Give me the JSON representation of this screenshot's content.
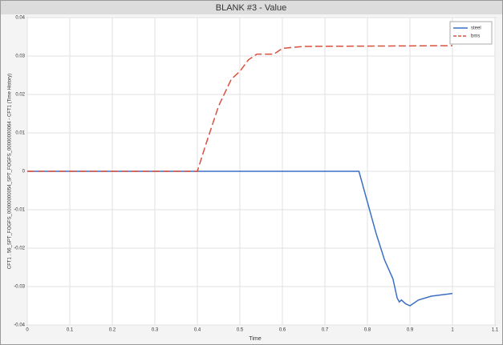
{
  "chart_data": {
    "type": "line",
    "title": "BLANK #3 - Value",
    "xlabel": "Time",
    "ylabel": "CFT1 . 56_SPT_FOGFS_00000000054_SPT_FOGFS_00000000064 - CFT1 (Time History)",
    "xlim": [
      0,
      1.1
    ],
    "xticks": [
      0,
      0.1,
      0.2,
      0.3,
      0.4,
      0.5,
      0.6,
      0.7,
      0.8,
      0.9,
      1,
      1.1
    ],
    "ylim": [
      -0.04,
      0.04
    ],
    "yticks": [
      -0.04,
      -0.03,
      -0.02,
      -0.01,
      0,
      0.01,
      0.02,
      0.03,
      0.04
    ],
    "grid": true,
    "legend": "upper right",
    "series": [
      {
        "name": "steel",
        "color": "#3a6fc4",
        "line_style": "solid",
        "x": [
          0,
          0.78,
          0.8,
          0.82,
          0.84,
          0.86,
          0.87,
          0.875,
          0.88,
          0.89,
          0.9,
          0.92,
          0.95,
          1.0
        ],
        "values": [
          0,
          0,
          -0.008,
          -0.016,
          -0.023,
          -0.028,
          -0.033,
          -0.034,
          -0.0335,
          -0.0345,
          -0.035,
          -0.0335,
          -0.0325,
          -0.0318
        ]
      },
      {
        "name": "bms",
        "color": "#d9503f",
        "line_style": "dashed",
        "x": [
          0,
          0.4,
          0.42,
          0.45,
          0.48,
          0.5,
          0.52,
          0.54,
          0.58,
          0.6,
          0.65,
          1.0
        ],
        "values": [
          0,
          0,
          0.007,
          0.017,
          0.024,
          0.026,
          0.029,
          0.0305,
          0.0305,
          0.032,
          0.0325,
          0.0327
        ]
      }
    ]
  }
}
